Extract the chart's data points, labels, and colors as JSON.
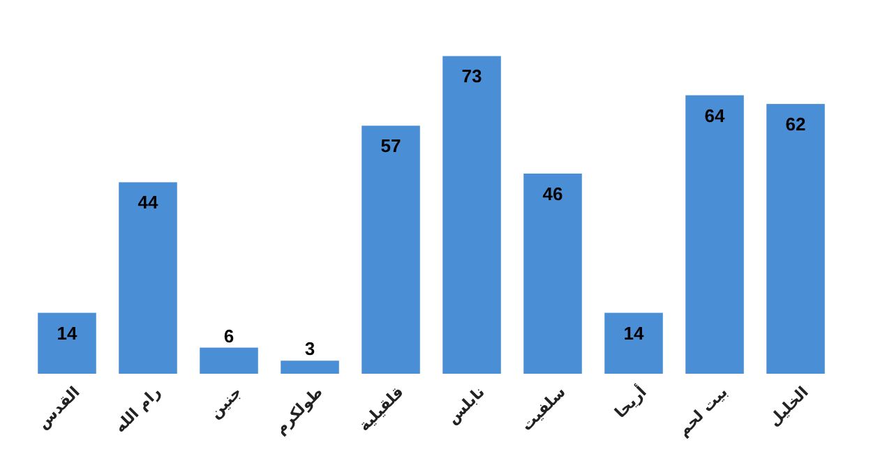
{
  "chart_data": {
    "type": "bar",
    "categories": [
      "القدس",
      "رام الله",
      "جنين",
      "طولكرم",
      "قلقيلية",
      "نابلس",
      "سلفيت",
      "أريحا",
      "بيت لحم",
      "الخليل"
    ],
    "values": [
      14,
      44,
      6,
      3,
      57,
      73,
      46,
      14,
      64,
      62
    ],
    "color": "#4a8fd6",
    "data_labels": true
  }
}
